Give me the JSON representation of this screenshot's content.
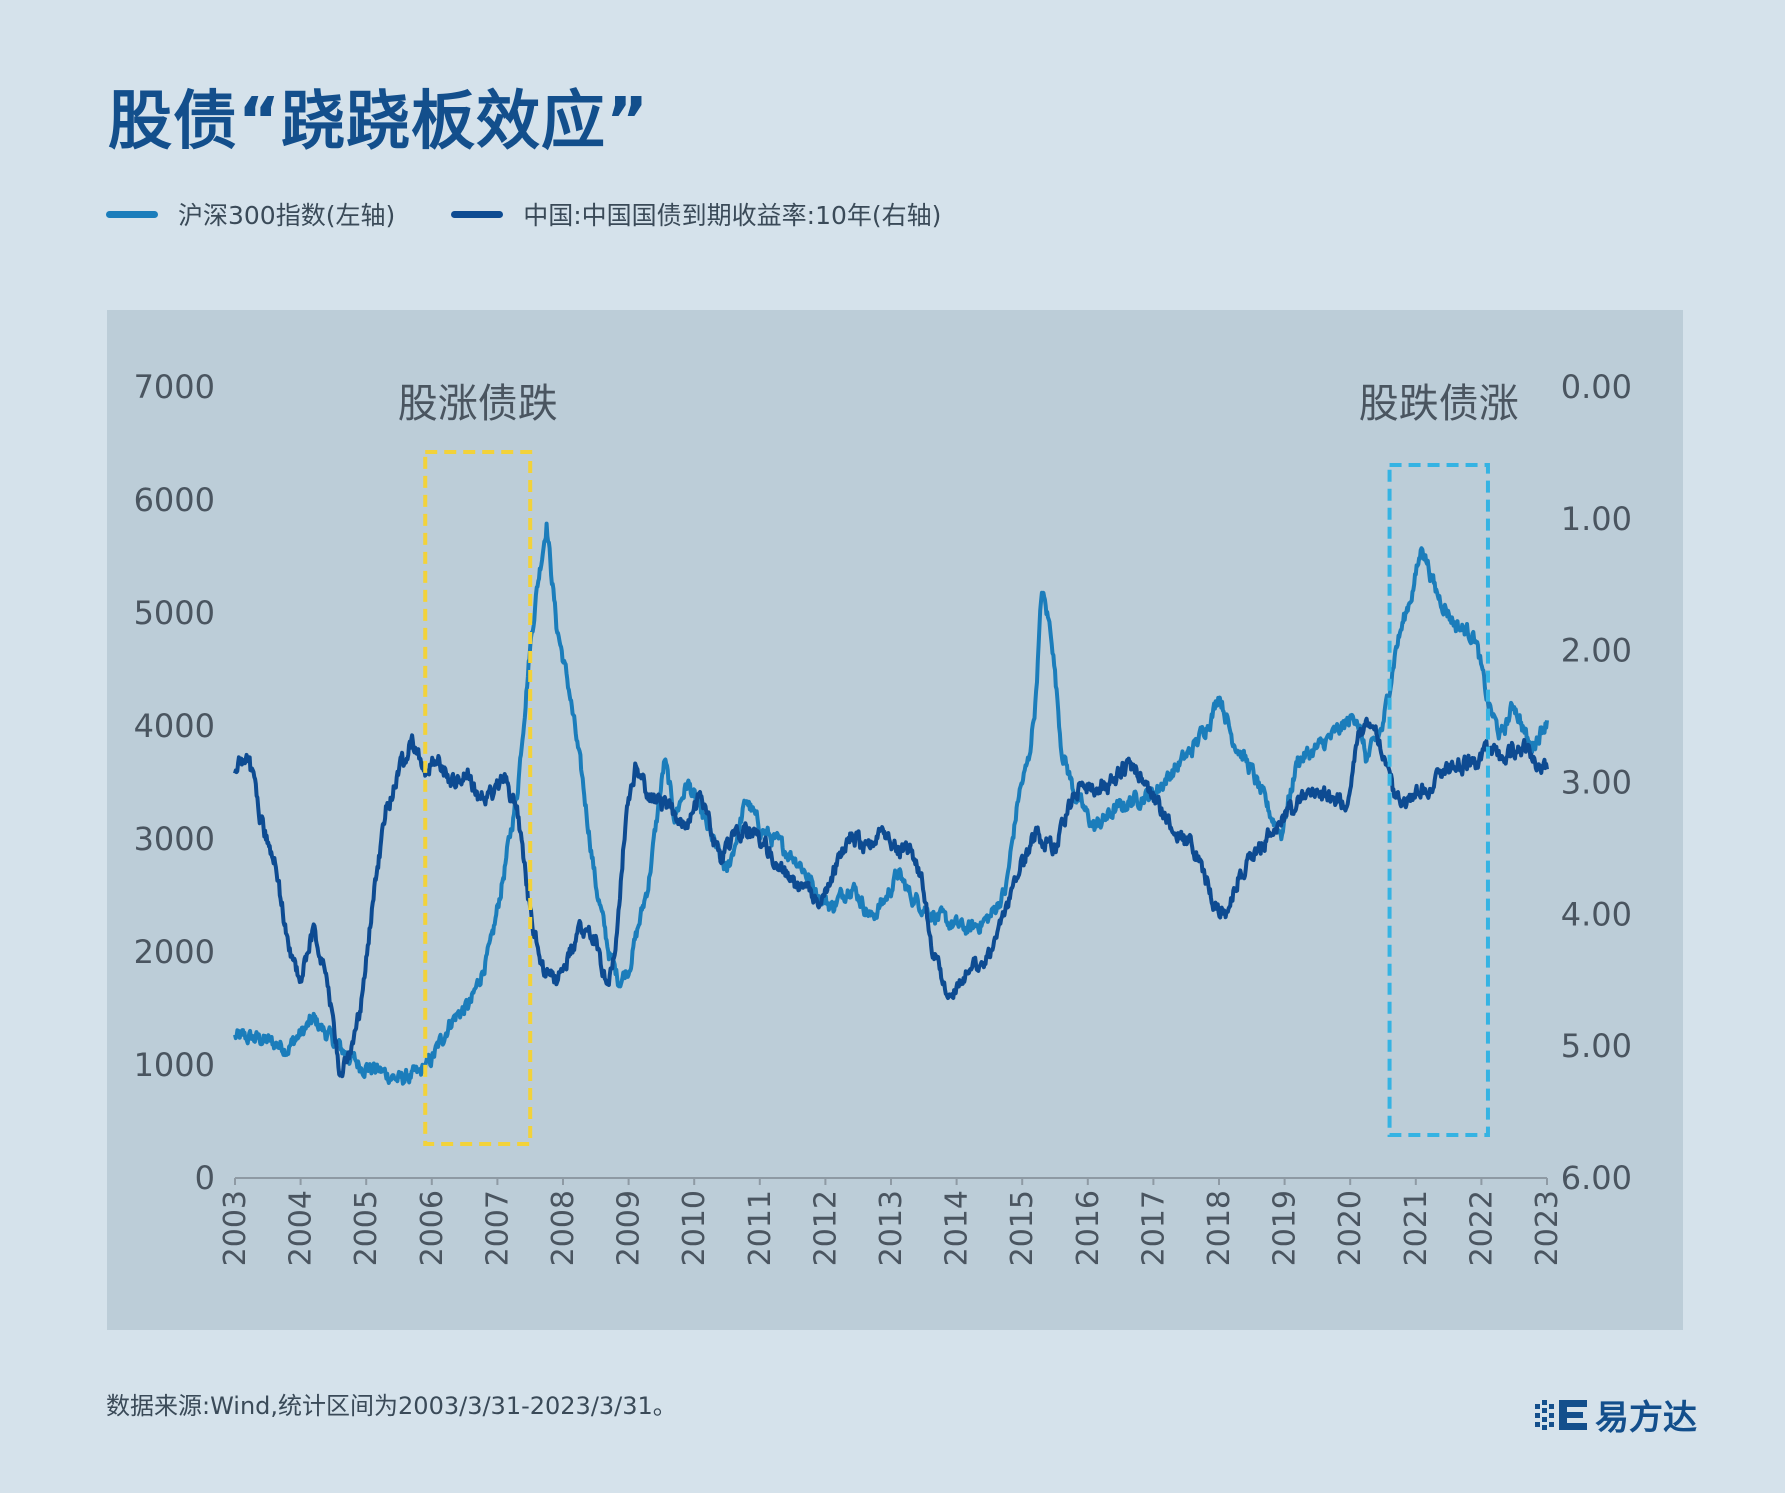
{
  "title": "股债“跷跷板效应”",
  "legend": {
    "stock_label": "沪深300指数(左轴)",
    "bond_label": "中国:中国国债到期收益率:10年(右轴)"
  },
  "source": "数据来源:Wind,统计区间为2003/3/31-2023/3/31。",
  "brand": "易方达",
  "colors": {
    "background": "#d5e2eb",
    "panel": "#bccdd8",
    "stock": "#1b7dbb",
    "bond": "#0d4b92",
    "title": "#134f8c",
    "box_yellow": "#f2d23a",
    "box_cyan": "#35b3e3"
  },
  "chart_data": {
    "type": "line",
    "title": "股债“跷跷板效应”",
    "left_axis": {
      "label": "沪深300指数(左轴)",
      "range": [
        0,
        7000
      ],
      "ticks": [
        "0",
        "1000",
        "2000",
        "3000",
        "4000",
        "5000",
        "6000",
        "7000"
      ]
    },
    "right_axis": {
      "label": "中国:中国国债到期收益率:10年(右轴)",
      "range": [
        0,
        6
      ],
      "inverted": true,
      "ticks": [
        "0.00",
        "1.00",
        "2.00",
        "3.00",
        "4.00",
        "5.00",
        "6.00"
      ]
    },
    "x_axis": {
      "range": [
        2003,
        2023
      ],
      "ticks": [
        "2003",
        "2004",
        "2005",
        "2006",
        "2007",
        "2008",
        "2009",
        "2010",
        "2011",
        "2012",
        "2013",
        "2014",
        "2015",
        "2016",
        "2017",
        "2018",
        "2019",
        "2020",
        "2021",
        "2022",
        "2023"
      ]
    },
    "grid": false,
    "legend_position": "top-left",
    "series": [
      {
        "name": "沪深300指数(左轴)",
        "axis": "left",
        "x": [
          2003.0,
          2003.4,
          2003.8,
          2004.2,
          2004.6,
          2004.9,
          2005.2,
          2005.5,
          2005.8,
          2006.0,
          2006.3,
          2006.6,
          2006.9,
          2007.1,
          2007.3,
          2007.5,
          2007.6,
          2007.75,
          2007.9,
          2008.1,
          2008.3,
          2008.5,
          2008.7,
          2008.85,
          2009.0,
          2009.3,
          2009.55,
          2009.7,
          2009.9,
          2010.2,
          2010.5,
          2010.8,
          2011.0,
          2011.3,
          2011.6,
          2011.9,
          2012.1,
          2012.4,
          2012.7,
          2012.95,
          2013.1,
          2013.3,
          2013.6,
          2013.9,
          2014.2,
          2014.5,
          2014.75,
          2014.95,
          2015.1,
          2015.2,
          2015.3,
          2015.45,
          2015.6,
          2015.8,
          2016.1,
          2016.4,
          2016.7,
          2017.0,
          2017.3,
          2017.6,
          2017.9,
          2018.0,
          2018.2,
          2018.5,
          2018.8,
          2018.95,
          2019.2,
          2019.5,
          2019.8,
          2020.1,
          2020.25,
          2020.5,
          2020.7,
          2020.95,
          2021.1,
          2021.3,
          2021.6,
          2021.9,
          2022.1,
          2022.3,
          2022.5,
          2022.75,
          2022.95,
          2023.0
        ],
        "values": [
          1250,
          1230,
          1150,
          1400,
          1150,
          1000,
          950,
          870,
          920,
          1050,
          1400,
          1550,
          2050,
          2700,
          3400,
          4700,
          5200,
          5800,
          4900,
          4300,
          3500,
          2600,
          2000,
          1750,
          1850,
          2600,
          3700,
          3200,
          3500,
          3100,
          2700,
          3350,
          3100,
          2950,
          2800,
          2500,
          2400,
          2600,
          2300,
          2500,
          2700,
          2500,
          2350,
          2250,
          2200,
          2300,
          2550,
          3400,
          3700,
          4200,
          5200,
          4800,
          3800,
          3400,
          3100,
          3250,
          3350,
          3400,
          3600,
          3800,
          4100,
          4300,
          3900,
          3600,
          3200,
          3050,
          3700,
          3800,
          3950,
          4100,
          3700,
          4000,
          4700,
          5200,
          5600,
          5200,
          4900,
          4800,
          4200,
          3900,
          4200,
          3800,
          4000,
          4050
        ]
      },
      {
        "name": "中国:中国国债到期收益率:10年(右轴)",
        "axis": "right",
        "x": [
          2003.0,
          2003.2,
          2003.4,
          2003.6,
          2003.8,
          2004.0,
          2004.2,
          2004.4,
          2004.6,
          2004.8,
          2004.95,
          2005.1,
          2005.3,
          2005.5,
          2005.7,
          2005.9,
          2006.1,
          2006.3,
          2006.5,
          2006.7,
          2006.9,
          2007.1,
          2007.3,
          2007.5,
          2007.7,
          2007.9,
          2008.1,
          2008.3,
          2008.5,
          2008.6,
          2008.7,
          2008.8,
          2008.95,
          2009.1,
          2009.3,
          2009.6,
          2009.9,
          2010.1,
          2010.4,
          2010.6,
          2010.9,
          2011.1,
          2011.4,
          2011.6,
          2011.9,
          2012.1,
          2012.4,
          2012.6,
          2012.9,
          2013.1,
          2013.3,
          2013.5,
          2013.6,
          2013.8,
          2013.95,
          2014.2,
          2014.5,
          2014.8,
          2015.0,
          2015.2,
          2015.5,
          2015.7,
          2015.9,
          2016.1,
          2016.4,
          2016.6,
          2016.85,
          2017.1,
          2017.4,
          2017.7,
          2017.9,
          2018.1,
          2018.3,
          2018.6,
          2018.9,
          2019.1,
          2019.4,
          2019.7,
          2019.95,
          2020.1,
          2020.25,
          2020.4,
          2020.6,
          2020.8,
          2021.0,
          2021.3,
          2021.6,
          2021.9,
          2022.1,
          2022.3,
          2022.5,
          2022.7,
          2022.9,
          2023.0
        ],
        "values": [
          2.9,
          2.8,
          3.3,
          3.6,
          4.2,
          4.5,
          4.1,
          4.5,
          5.2,
          5.0,
          4.6,
          3.9,
          3.2,
          2.9,
          2.7,
          2.9,
          2.8,
          3.0,
          2.9,
          3.1,
          3.1,
          3.0,
          3.2,
          4.0,
          4.4,
          4.5,
          4.3,
          4.1,
          4.2,
          4.4,
          4.5,
          4.3,
          3.3,
          2.9,
          3.1,
          3.2,
          3.3,
          3.1,
          3.6,
          3.4,
          3.4,
          3.5,
          3.7,
          3.8,
          3.9,
          3.7,
          3.4,
          3.5,
          3.4,
          3.5,
          3.5,
          3.8,
          4.2,
          4.5,
          4.6,
          4.4,
          4.3,
          3.9,
          3.6,
          3.4,
          3.5,
          3.2,
          3.0,
          3.05,
          3.0,
          2.85,
          2.95,
          3.2,
          3.4,
          3.55,
          3.9,
          4.0,
          3.7,
          3.5,
          3.3,
          3.2,
          3.1,
          3.1,
          3.2,
          2.7,
          2.5,
          2.6,
          3.0,
          3.2,
          3.1,
          3.0,
          2.85,
          2.85,
          2.75,
          2.8,
          2.75,
          2.75,
          2.9,
          2.9
        ]
      }
    ],
    "annotations": [
      {
        "label": "股涨债跌",
        "x_range": [
          2005.9,
          2007.5
        ],
        "color": "yellow"
      },
      {
        "label": "股跌债涨",
        "x_range": [
          2020.6,
          2022.1
        ],
        "color": "cyan"
      }
    ]
  }
}
